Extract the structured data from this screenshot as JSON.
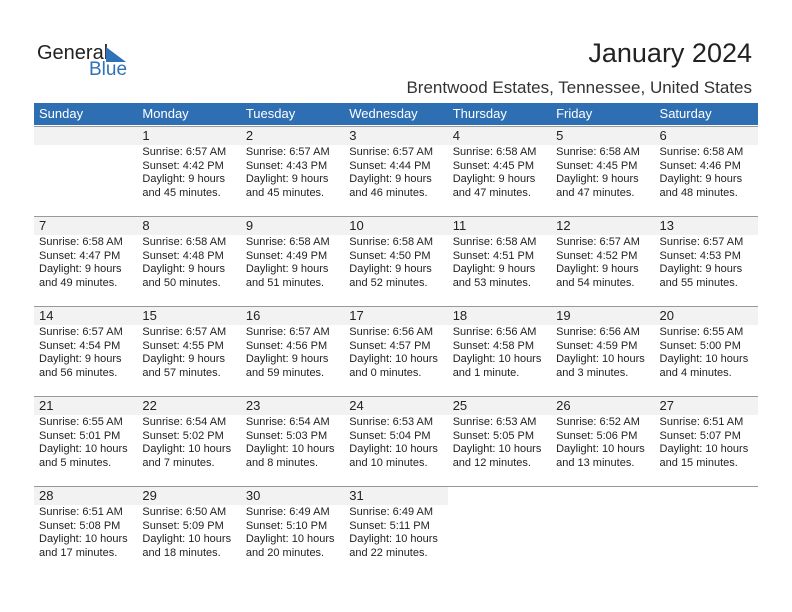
{
  "logo": {
    "general": "General",
    "blue": "Blue"
  },
  "title": "January 2024",
  "location": "Brentwood Estates, Tennessee, United States",
  "colors": {
    "header": "#2e6fb4",
    "accent": "#2e72b8"
  },
  "weekdays": [
    "Sunday",
    "Monday",
    "Tuesday",
    "Wednesday",
    "Thursday",
    "Friday",
    "Saturday"
  ],
  "first_weekday_index": 1,
  "days": [
    {
      "d": "1",
      "sr": "Sunrise: 6:57 AM",
      "ss": "Sunset: 4:42 PM",
      "dl": "Daylight: 9 hours",
      "dm": "and 45 minutes."
    },
    {
      "d": "2",
      "sr": "Sunrise: 6:57 AM",
      "ss": "Sunset: 4:43 PM",
      "dl": "Daylight: 9 hours",
      "dm": "and 45 minutes."
    },
    {
      "d": "3",
      "sr": "Sunrise: 6:57 AM",
      "ss": "Sunset: 4:44 PM",
      "dl": "Daylight: 9 hours",
      "dm": "and 46 minutes."
    },
    {
      "d": "4",
      "sr": "Sunrise: 6:58 AM",
      "ss": "Sunset: 4:45 PM",
      "dl": "Daylight: 9 hours",
      "dm": "and 47 minutes."
    },
    {
      "d": "5",
      "sr": "Sunrise: 6:58 AM",
      "ss": "Sunset: 4:45 PM",
      "dl": "Daylight: 9 hours",
      "dm": "and 47 minutes."
    },
    {
      "d": "6",
      "sr": "Sunrise: 6:58 AM",
      "ss": "Sunset: 4:46 PM",
      "dl": "Daylight: 9 hours",
      "dm": "and 48 minutes."
    },
    {
      "d": "7",
      "sr": "Sunrise: 6:58 AM",
      "ss": "Sunset: 4:47 PM",
      "dl": "Daylight: 9 hours",
      "dm": "and 49 minutes."
    },
    {
      "d": "8",
      "sr": "Sunrise: 6:58 AM",
      "ss": "Sunset: 4:48 PM",
      "dl": "Daylight: 9 hours",
      "dm": "and 50 minutes."
    },
    {
      "d": "9",
      "sr": "Sunrise: 6:58 AM",
      "ss": "Sunset: 4:49 PM",
      "dl": "Daylight: 9 hours",
      "dm": "and 51 minutes."
    },
    {
      "d": "10",
      "sr": "Sunrise: 6:58 AM",
      "ss": "Sunset: 4:50 PM",
      "dl": "Daylight: 9 hours",
      "dm": "and 52 minutes."
    },
    {
      "d": "11",
      "sr": "Sunrise: 6:58 AM",
      "ss": "Sunset: 4:51 PM",
      "dl": "Daylight: 9 hours",
      "dm": "and 53 minutes."
    },
    {
      "d": "12",
      "sr": "Sunrise: 6:57 AM",
      "ss": "Sunset: 4:52 PM",
      "dl": "Daylight: 9 hours",
      "dm": "and 54 minutes."
    },
    {
      "d": "13",
      "sr": "Sunrise: 6:57 AM",
      "ss": "Sunset: 4:53 PM",
      "dl": "Daylight: 9 hours",
      "dm": "and 55 minutes."
    },
    {
      "d": "14",
      "sr": "Sunrise: 6:57 AM",
      "ss": "Sunset: 4:54 PM",
      "dl": "Daylight: 9 hours",
      "dm": "and 56 minutes."
    },
    {
      "d": "15",
      "sr": "Sunrise: 6:57 AM",
      "ss": "Sunset: 4:55 PM",
      "dl": "Daylight: 9 hours",
      "dm": "and 57 minutes."
    },
    {
      "d": "16",
      "sr": "Sunrise: 6:57 AM",
      "ss": "Sunset: 4:56 PM",
      "dl": "Daylight: 9 hours",
      "dm": "and 59 minutes."
    },
    {
      "d": "17",
      "sr": "Sunrise: 6:56 AM",
      "ss": "Sunset: 4:57 PM",
      "dl": "Daylight: 10 hours",
      "dm": "and 0 minutes."
    },
    {
      "d": "18",
      "sr": "Sunrise: 6:56 AM",
      "ss": "Sunset: 4:58 PM",
      "dl": "Daylight: 10 hours",
      "dm": "and 1 minute."
    },
    {
      "d": "19",
      "sr": "Sunrise: 6:56 AM",
      "ss": "Sunset: 4:59 PM",
      "dl": "Daylight: 10 hours",
      "dm": "and 3 minutes."
    },
    {
      "d": "20",
      "sr": "Sunrise: 6:55 AM",
      "ss": "Sunset: 5:00 PM",
      "dl": "Daylight: 10 hours",
      "dm": "and 4 minutes."
    },
    {
      "d": "21",
      "sr": "Sunrise: 6:55 AM",
      "ss": "Sunset: 5:01 PM",
      "dl": "Daylight: 10 hours",
      "dm": "and 5 minutes."
    },
    {
      "d": "22",
      "sr": "Sunrise: 6:54 AM",
      "ss": "Sunset: 5:02 PM",
      "dl": "Daylight: 10 hours",
      "dm": "and 7 minutes."
    },
    {
      "d": "23",
      "sr": "Sunrise: 6:54 AM",
      "ss": "Sunset: 5:03 PM",
      "dl": "Daylight: 10 hours",
      "dm": "and 8 minutes."
    },
    {
      "d": "24",
      "sr": "Sunrise: 6:53 AM",
      "ss": "Sunset: 5:04 PM",
      "dl": "Daylight: 10 hours",
      "dm": "and 10 minutes."
    },
    {
      "d": "25",
      "sr": "Sunrise: 6:53 AM",
      "ss": "Sunset: 5:05 PM",
      "dl": "Daylight: 10 hours",
      "dm": "and 12 minutes."
    },
    {
      "d": "26",
      "sr": "Sunrise: 6:52 AM",
      "ss": "Sunset: 5:06 PM",
      "dl": "Daylight: 10 hours",
      "dm": "and 13 minutes."
    },
    {
      "d": "27",
      "sr": "Sunrise: 6:51 AM",
      "ss": "Sunset: 5:07 PM",
      "dl": "Daylight: 10 hours",
      "dm": "and 15 minutes."
    },
    {
      "d": "28",
      "sr": "Sunrise: 6:51 AM",
      "ss": "Sunset: 5:08 PM",
      "dl": "Daylight: 10 hours",
      "dm": "and 17 minutes."
    },
    {
      "d": "29",
      "sr": "Sunrise: 6:50 AM",
      "ss": "Sunset: 5:09 PM",
      "dl": "Daylight: 10 hours",
      "dm": "and 18 minutes."
    },
    {
      "d": "30",
      "sr": "Sunrise: 6:49 AM",
      "ss": "Sunset: 5:10 PM",
      "dl": "Daylight: 10 hours",
      "dm": "and 20 minutes."
    },
    {
      "d": "31",
      "sr": "Sunrise: 6:49 AM",
      "ss": "Sunset: 5:11 PM",
      "dl": "Daylight: 10 hours",
      "dm": "and 22 minutes."
    }
  ]
}
